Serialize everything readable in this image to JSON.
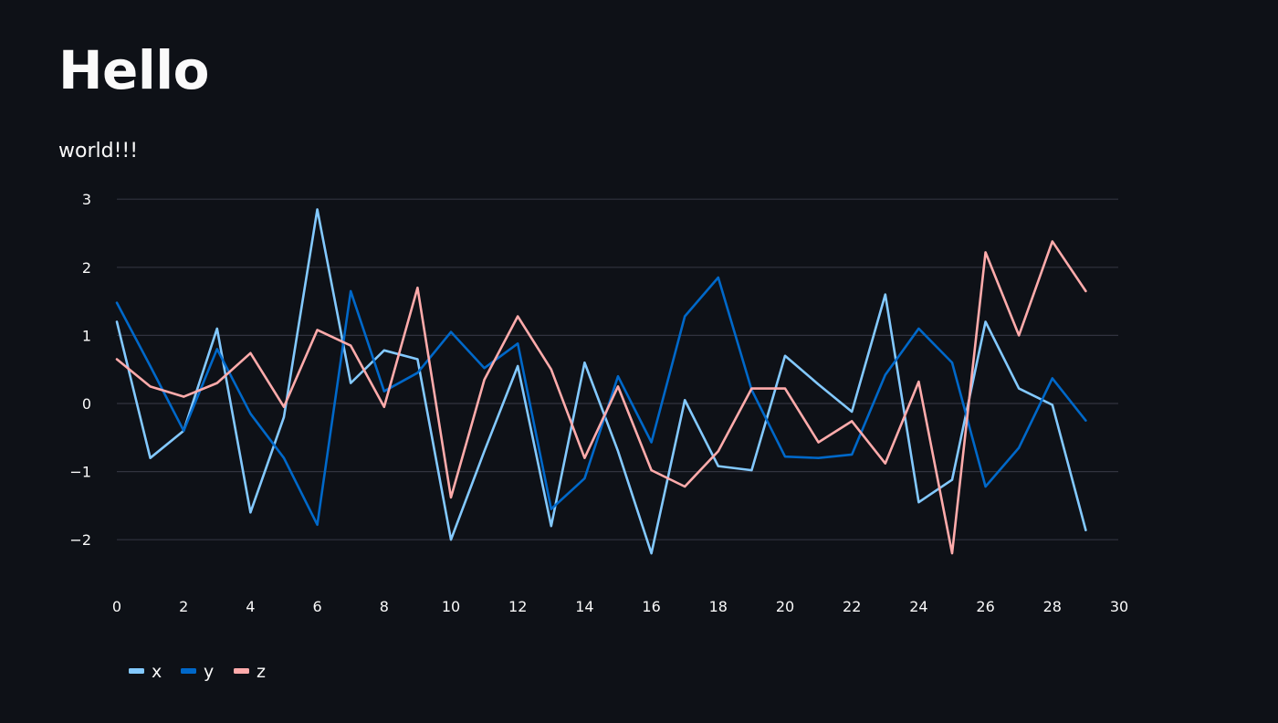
{
  "page": {
    "title": "Hello",
    "subtitle": "world!!!"
  },
  "chart_data": {
    "type": "line",
    "x": [
      0,
      1,
      2,
      3,
      4,
      5,
      6,
      7,
      8,
      9,
      10,
      11,
      12,
      13,
      14,
      15,
      16,
      17,
      18,
      19,
      20,
      21,
      22,
      23,
      24,
      25,
      26,
      27,
      28,
      29
    ],
    "xlim": [
      0,
      30
    ],
    "ylim": [
      -2.7,
      3.1
    ],
    "x_ticks": [
      0,
      2,
      4,
      6,
      8,
      10,
      12,
      14,
      16,
      18,
      20,
      22,
      24,
      26,
      28,
      30
    ],
    "y_ticks": [
      -2,
      -1,
      0,
      1,
      2,
      3
    ],
    "y_tick_labels": [
      "−2",
      "−1",
      "0",
      "1",
      "2",
      "3"
    ],
    "grid": true,
    "legend_position": "bottom-left",
    "series": [
      {
        "name": "x",
        "color": "#83c9ff",
        "values": [
          1.2,
          -0.8,
          -0.4,
          1.1,
          -1.6,
          -0.2,
          2.85,
          0.3,
          0.78,
          0.65,
          -2.0,
          -0.7,
          0.55,
          -1.8,
          0.6,
          -0.7,
          -2.2,
          0.05,
          -0.92,
          -0.98,
          0.7,
          0.28,
          -0.12,
          1.6,
          -1.45,
          -1.12,
          1.2,
          0.22,
          -0.02,
          -1.86
        ]
      },
      {
        "name": "y",
        "color": "#0068c9",
        "values": [
          1.48,
          0.55,
          -0.4,
          0.8,
          -0.15,
          -0.8,
          -1.78,
          1.65,
          0.18,
          0.45,
          1.05,
          0.52,
          0.88,
          -1.55,
          -1.1,
          0.4,
          -0.57,
          1.28,
          1.85,
          0.2,
          -0.78,
          -0.8,
          -0.75,
          0.42,
          1.1,
          0.6,
          -1.22,
          -0.65,
          0.37,
          -0.25
        ]
      },
      {
        "name": "z",
        "color": "#ffabab",
        "values": [
          0.65,
          0.25,
          0.1,
          0.3,
          0.74,
          -0.05,
          1.08,
          0.85,
          -0.05,
          1.7,
          -1.38,
          0.35,
          1.28,
          0.5,
          -0.8,
          0.25,
          -0.98,
          -1.22,
          -0.7,
          0.22,
          0.22,
          -0.57,
          -0.26,
          -0.88,
          0.32,
          -2.2,
          2.22,
          1.0,
          2.38,
          1.65
        ]
      }
    ]
  }
}
